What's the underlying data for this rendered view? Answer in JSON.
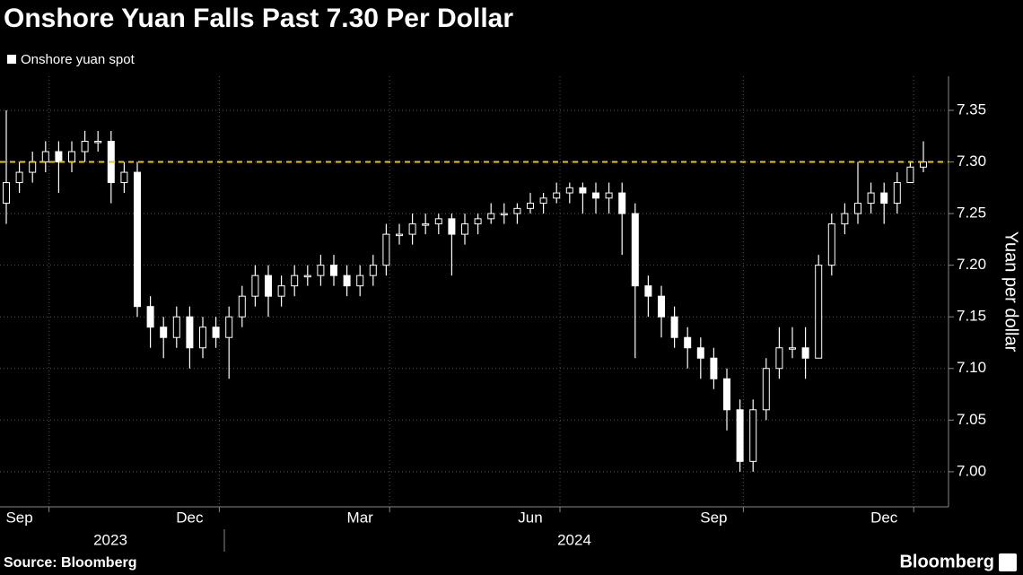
{
  "chart_data": {
    "type": "candlestick",
    "title": "Onshore Yuan Falls Past 7.30 Per Dollar",
    "legend": "Onshore yuan spot",
    "y_label": "Yuan per dollar",
    "source": "Source: Bloomberg",
    "brand": "Bloomberg",
    "color": "#ffffff",
    "categories": [
      null,
      "Sep",
      null,
      null,
      null,
      null,
      null,
      null,
      null,
      null,
      null,
      null,
      null,
      null,
      "Dec",
      null,
      null,
      null,
      null,
      null,
      null,
      null,
      null,
      null,
      null,
      null,
      null,
      "Mar",
      null,
      null,
      null,
      null,
      null,
      null,
      null,
      null,
      null,
      null,
      null,
      null,
      "Jun",
      null,
      null,
      null,
      null,
      null,
      null,
      null,
      null,
      null,
      null,
      null,
      null,
      null,
      "Sep",
      null,
      null,
      null,
      null,
      null,
      null,
      null,
      null,
      null,
      null,
      null,
      null,
      "Dec",
      null,
      null,
      null
    ],
    "year_labels": [
      "2023",
      "2024"
    ],
    "open": [
      7.26,
      7.28,
      7.29,
      7.3,
      7.31,
      7.3,
      7.31,
      7.32,
      7.32,
      7.28,
      7.29,
      7.16,
      7.14,
      7.13,
      7.15,
      7.12,
      7.14,
      7.13,
      7.15,
      7.17,
      7.19,
      7.17,
      7.18,
      7.19,
      7.19,
      7.2,
      7.19,
      7.18,
      7.19,
      7.2,
      7.23,
      7.23,
      7.24,
      7.24,
      7.245,
      7.23,
      7.24,
      7.245,
      7.25,
      7.25,
      7.255,
      7.26,
      7.265,
      7.27,
      7.275,
      7.27,
      7.265,
      7.27,
      7.25,
      7.18,
      7.17,
      7.15,
      7.13,
      7.12,
      7.11,
      7.09,
      7.06,
      7.01,
      7.06,
      7.1,
      7.12,
      7.12,
      7.11,
      7.2,
      7.24,
      7.25,
      7.26,
      7.27,
      7.26,
      7.28,
      7.295
    ],
    "high": [
      7.35,
      7.3,
      7.31,
      7.32,
      7.32,
      7.32,
      7.33,
      7.33,
      7.33,
      7.3,
      7.3,
      7.17,
      7.15,
      7.16,
      7.16,
      7.15,
      7.15,
      7.16,
      7.18,
      7.2,
      7.2,
      7.19,
      7.2,
      7.2,
      7.21,
      7.21,
      7.2,
      7.2,
      7.21,
      7.24,
      7.24,
      7.25,
      7.25,
      7.25,
      7.25,
      7.25,
      7.25,
      7.26,
      7.26,
      7.26,
      7.27,
      7.27,
      7.28,
      7.28,
      7.28,
      7.28,
      7.28,
      7.28,
      7.26,
      7.19,
      7.18,
      7.16,
      7.14,
      7.13,
      7.12,
      7.1,
      7.07,
      7.07,
      7.11,
      7.14,
      7.14,
      7.14,
      7.21,
      7.25,
      7.26,
      7.3,
      7.28,
      7.28,
      7.29,
      7.3,
      7.32
    ],
    "low": [
      7.24,
      7.27,
      7.28,
      7.29,
      7.27,
      7.29,
      7.3,
      7.31,
      7.26,
      7.27,
      7.15,
      7.12,
      7.11,
      7.12,
      7.1,
      7.11,
      7.12,
      7.09,
      7.14,
      7.16,
      7.15,
      7.16,
      7.17,
      7.18,
      7.18,
      7.18,
      7.17,
      7.17,
      7.18,
      7.19,
      7.22,
      7.22,
      7.23,
      7.23,
      7.19,
      7.22,
      7.23,
      7.24,
      7.24,
      7.24,
      7.25,
      7.25,
      7.26,
      7.26,
      7.25,
      7.25,
      7.25,
      7.21,
      7.11,
      7.15,
      7.13,
      7.12,
      7.1,
      7.09,
      7.08,
      7.04,
      7.0,
      7.0,
      7.05,
      7.09,
      7.11,
      7.09,
      7.11,
      7.19,
      7.23,
      7.24,
      7.25,
      7.24,
      7.25,
      7.28,
      7.29
    ],
    "close": [
      7.28,
      7.29,
      7.3,
      7.31,
      7.3,
      7.31,
      7.32,
      7.32,
      7.28,
      7.29,
      7.16,
      7.14,
      7.13,
      7.15,
      7.12,
      7.14,
      7.13,
      7.15,
      7.17,
      7.19,
      7.17,
      7.18,
      7.19,
      7.19,
      7.2,
      7.19,
      7.18,
      7.19,
      7.2,
      7.23,
      7.23,
      7.24,
      7.24,
      7.245,
      7.23,
      7.24,
      7.245,
      7.25,
      7.25,
      7.255,
      7.26,
      7.265,
      7.27,
      7.275,
      7.27,
      7.265,
      7.27,
      7.25,
      7.18,
      7.17,
      7.15,
      7.13,
      7.12,
      7.11,
      7.09,
      7.06,
      7.01,
      7.06,
      7.1,
      7.12,
      7.12,
      7.11,
      7.2,
      7.24,
      7.25,
      7.26,
      7.27,
      7.26,
      7.28,
      7.295,
      7.3
    ],
    "reference_line": {
      "value": 7.3,
      "color": "#e6c619"
    },
    "ylim": [
      6.966,
      7.383
    ],
    "yticks": [
      {
        "value": 7,
        "label": "7.00"
      },
      7.05,
      {
        "value": 7.1,
        "label": "7.10"
      },
      7.15,
      {
        "value": 7.2,
        "label": "7.20"
      },
      7.25,
      {
        "value": 7.3,
        "label": "7.30"
      },
      7.35
    ],
    "grid": true
  }
}
